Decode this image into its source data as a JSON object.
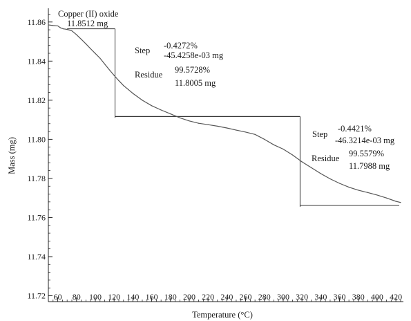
{
  "chart_data": {
    "type": "line",
    "title": "",
    "xlabel": "Temperature (°C)",
    "ylabel": "Mass (mg)",
    "xlim": [
      50,
      428
    ],
    "ylim": [
      11.717,
      11.867
    ],
    "x_ticks": [
      60,
      80,
      100,
      120,
      140,
      160,
      180,
      200,
      220,
      240,
      260,
      280,
      300,
      320,
      340,
      360,
      380,
      400,
      420
    ],
    "x_tick_labels": [
      "60",
      "80",
      "100",
      "120",
      "140",
      "160",
      "180",
      "200",
      "220",
      "240",
      "260",
      "280",
      "300",
      "320",
      "340",
      "360",
      "380",
      "400",
      "420"
    ],
    "y_ticks": [
      11.72,
      11.74,
      11.76,
      11.78,
      11.8,
      11.82,
      11.84,
      11.86
    ],
    "y_tick_labels": [
      "11.72",
      "11.74",
      "11.76",
      "11.78",
      "11.80",
      "11.82",
      "11.84",
      "11.86"
    ],
    "grid": false,
    "series": [
      {
        "color": "#555555",
        "x": [
          50,
          55,
          60,
          63,
          66,
          70,
          75,
          80,
          85,
          90,
          95,
          100,
          105,
          110,
          115,
          120,
          125,
          130,
          135,
          140,
          150,
          160,
          170,
          180,
          190,
          200,
          210,
          220,
          230,
          240,
          250,
          260,
          270,
          280,
          290,
          300,
          310,
          320,
          330,
          340,
          350,
          360,
          370,
          380,
          390,
          400,
          410,
          420,
          425
        ],
        "y": [
          11.8585,
          11.8582,
          11.858,
          11.857,
          11.8565,
          11.8562,
          11.8555,
          11.8535,
          11.8512,
          11.8488,
          11.8463,
          11.8439,
          11.8415,
          11.8385,
          11.8355,
          11.8327,
          11.83,
          11.8275,
          11.8255,
          11.8235,
          11.82,
          11.8172,
          11.815,
          11.813,
          11.811,
          11.8094,
          11.8082,
          11.8075,
          11.8067,
          11.8058,
          11.8047,
          11.8037,
          11.8025,
          11.8,
          11.7972,
          11.795,
          11.792,
          11.7885,
          11.7855,
          11.7825,
          11.7798,
          11.7775,
          11.7755,
          11.774,
          11.7728,
          11.7715,
          11.77,
          11.7683,
          11.7677
        ]
      }
    ],
    "sample": {
      "name": "Copper (II) oxide",
      "mass": "11.8512 mg"
    },
    "steps": [
      {
        "step_label": "Step",
        "step_percent": "-0.4272%",
        "step_mass": "-45.4258e-03 mg",
        "residue_label": "Residue",
        "residue_percent": "99.5728%",
        "residue_mass": "11.8005 mg",
        "x_left": 70,
        "x_right": 121,
        "y_top": 11.8565,
        "y_bottom": 11.8117
      },
      {
        "step_label": "Step",
        "step_percent": "-0.4421%",
        "step_mass": "-46.3214e-03 mg",
        "residue_label": "Residue",
        "residue_percent": "99.5579%",
        "residue_mass": "11.7988 mg",
        "x_left": 121,
        "x_right": 318,
        "y_top": 11.8117,
        "y_bottom": 11.7662
      }
    ]
  }
}
